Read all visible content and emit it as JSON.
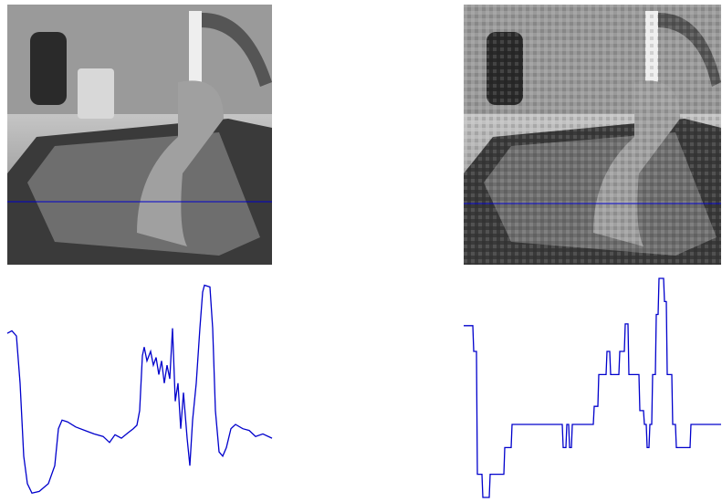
{
  "chart_data": [
    {
      "type": "line",
      "x": [
        0,
        5,
        10,
        14,
        18,
        22,
        27,
        35,
        45,
        52,
        56,
        60,
        66,
        75,
        85,
        95,
        105,
        112,
        118,
        125,
        132,
        138,
        142,
        145,
        148,
        150,
        153,
        157,
        160,
        163,
        166,
        169,
        172,
        175,
        178,
        181,
        184,
        187,
        190,
        193,
        197,
        200,
        203,
        207,
        211,
        214,
        216,
        222,
        225,
        228,
        232,
        236,
        240,
        245,
        250,
        258,
        265,
        272,
        280,
        290
      ],
      "series": [
        {
          "color": "#0000cc",
          "values": [
            191,
            194,
            188,
            133,
            48,
            16,
            5,
            7,
            16,
            37,
            80,
            90,
            88,
            82,
            78,
            74,
            71,
            64,
            73,
            69,
            75,
            80,
            84,
            101,
            165,
            175,
            159,
            170,
            154,
            163,
            143,
            159,
            133,
            154,
            138,
            197,
            112,
            133,
            80,
            122,
            69,
            37,
            90,
            133,
            197,
            239,
            247,
            245,
            197,
            101,
            53,
            48,
            58,
            80,
            85,
            80,
            78,
            71,
            74,
            69
          ]
        }
      ],
      "xlim": [
        0,
        290
      ],
      "ylim": [
        0,
        255
      ]
    },
    {
      "type": "line",
      "x": [
        0,
        10,
        11,
        14,
        15,
        20,
        21,
        28,
        29,
        44,
        45,
        52,
        53,
        108,
        109,
        112,
        113,
        115,
        116,
        118,
        119,
        142,
        143,
        147,
        148,
        156,
        157,
        160,
        161,
        170,
        171,
        176,
        177,
        180,
        181,
        192,
        193,
        197,
        198,
        200,
        201,
        203,
        204,
        206,
        207,
        210,
        211,
        213,
        214,
        219,
        220,
        222,
        223,
        228,
        229,
        232,
        233,
        248,
        249,
        282
      ],
      "series": [
        {
          "color": "#0000cc",
          "values": [
            200,
            200,
            170,
            170,
            27,
            27,
            0,
            0,
            27,
            27,
            58,
            58,
            85,
            85,
            58,
            58,
            85,
            85,
            58,
            58,
            85,
            85,
            106,
            106,
            143,
            143,
            170,
            170,
            143,
            143,
            170,
            170,
            202,
            202,
            143,
            143,
            101,
            101,
            85,
            85,
            58,
            58,
            85,
            85,
            143,
            143,
            213,
            213,
            255,
            255,
            228,
            228,
            143,
            143,
            85,
            85,
            58,
            58,
            85,
            85
          ]
        }
      ],
      "xlim": [
        0,
        282
      ],
      "ylim": [
        0,
        255
      ]
    }
  ]
}
